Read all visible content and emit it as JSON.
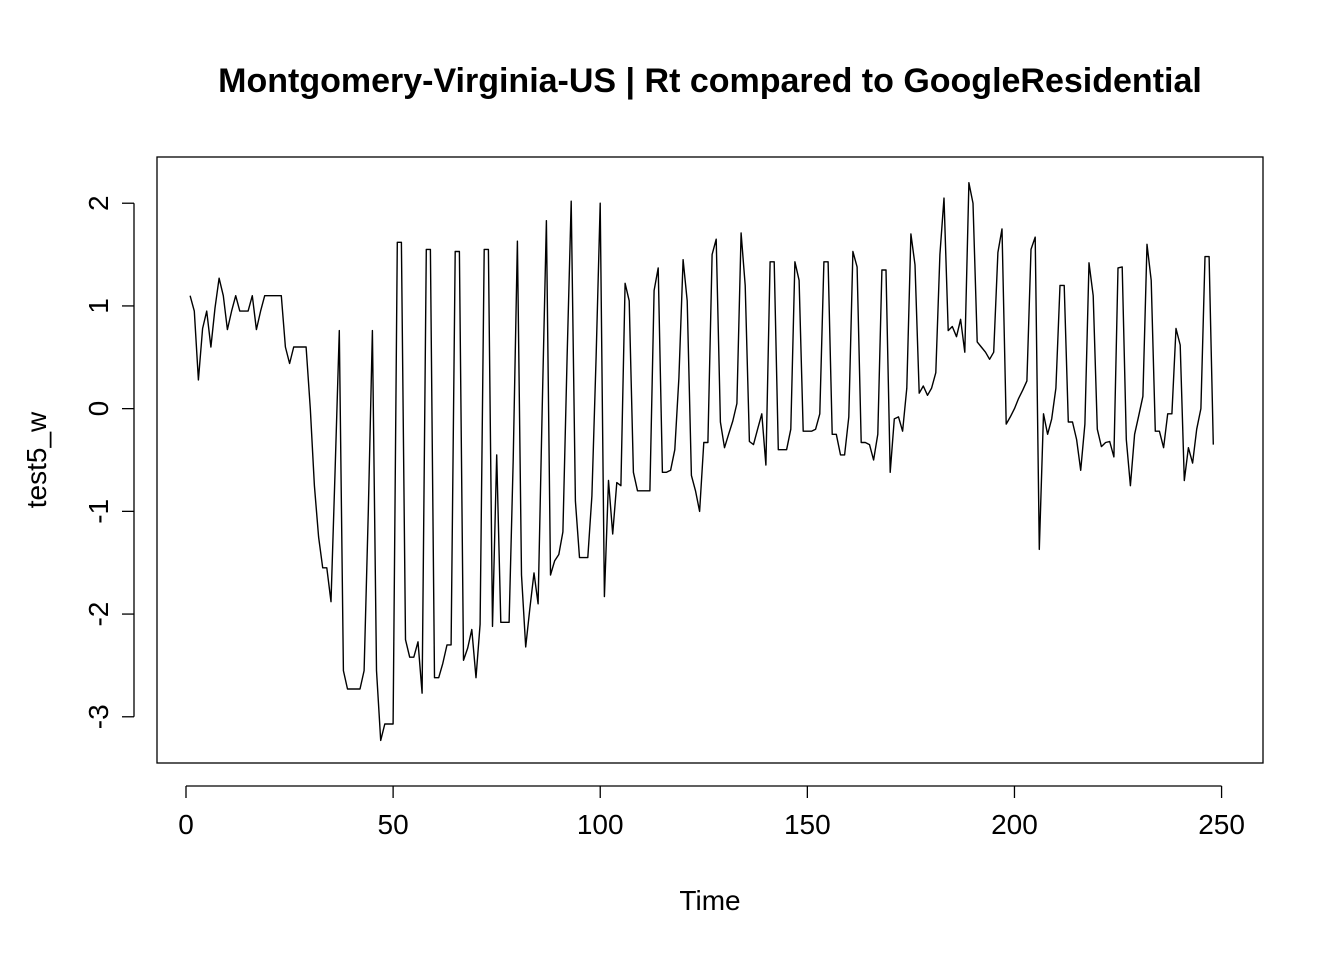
{
  "chart_data": {
    "type": "line",
    "title": "Montgomery-Virginia-US | Rt compared to GoogleResidential",
    "xlabel": "Time",
    "ylabel": "test5_w",
    "xlim": [
      -7,
      260
    ],
    "ylim": [
      -3.45,
      2.45
    ],
    "xticks": [
      0,
      50,
      100,
      150,
      200,
      250
    ],
    "yticks": [
      -3,
      -2,
      -1,
      0,
      1,
      2
    ],
    "grid": false,
    "legend": "none",
    "series": [
      {
        "x": [
          1,
          2,
          3,
          4,
          5,
          6,
          7,
          8,
          9,
          10,
          11,
          12,
          13,
          14,
          15,
          16,
          17,
          18,
          19,
          20,
          21,
          22,
          23,
          24,
          25,
          26,
          27,
          28,
          29,
          30,
          31,
          32,
          33,
          34,
          35,
          36,
          37,
          38,
          39,
          40,
          41,
          42,
          43,
          44,
          45,
          46,
          47,
          48,
          49,
          50,
          51,
          52,
          53,
          54,
          55,
          56,
          57,
          58,
          59,
          60,
          61,
          62,
          63,
          64,
          65,
          66,
          67,
          68,
          69,
          70,
          71,
          72,
          73,
          74,
          75,
          76,
          77,
          78,
          79,
          80,
          81,
          82,
          83,
          84,
          85,
          86,
          87,
          88,
          89,
          90,
          91,
          92,
          93,
          94,
          95,
          96,
          97,
          98,
          99,
          100,
          101,
          102,
          103,
          104,
          105,
          106,
          107,
          108,
          109,
          110,
          111,
          112,
          113,
          114,
          115,
          116,
          117,
          118,
          119,
          120,
          121,
          122,
          123,
          124,
          125,
          126,
          127,
          128,
          129,
          130,
          131,
          132,
          133,
          134,
          135,
          136,
          137,
          138,
          139,
          140,
          141,
          142,
          143,
          144,
          145,
          146,
          147,
          148,
          149,
          150,
          151,
          152,
          153,
          154,
          155,
          156,
          157,
          158,
          159,
          160,
          161,
          162,
          163,
          164,
          165,
          166,
          167,
          168,
          169,
          170,
          171,
          172,
          173,
          174,
          175,
          176,
          177,
          178,
          179,
          180,
          181,
          182,
          183,
          184,
          185,
          186,
          187,
          188,
          189,
          190,
          191,
          192,
          193,
          194,
          195,
          196,
          197,
          198,
          199,
          200,
          201,
          202,
          203,
          204,
          205,
          206,
          207,
          208,
          209,
          210,
          211,
          212,
          213,
          214,
          215,
          216,
          217,
          218,
          219,
          220,
          221,
          222,
          223,
          224,
          225,
          226,
          227,
          228,
          229,
          230,
          231,
          232,
          233,
          234,
          235,
          236,
          237,
          238,
          239,
          240,
          241,
          242,
          243,
          244,
          245,
          246,
          247,
          248
        ],
        "y": [
          1.1,
          0.95,
          0.28,
          0.78,
          0.95,
          0.6,
          0.98,
          1.27,
          1.1,
          0.77,
          0.95,
          1.1,
          0.95,
          0.95,
          0.95,
          1.1,
          0.77,
          0.95,
          1.1,
          1.1,
          1.1,
          1.1,
          1.1,
          0.6,
          0.44,
          0.6,
          0.6,
          0.6,
          0.6,
          0.0,
          -0.75,
          -1.25,
          -1.55,
          -1.55,
          -1.88,
          -0.6,
          0.76,
          -2.55,
          -2.73,
          -2.73,
          -2.73,
          -2.73,
          -2.55,
          -1.0,
          0.76,
          -2.55,
          -3.23,
          -3.07,
          -3.07,
          -3.07,
          1.62,
          1.62,
          -2.25,
          -2.42,
          -2.42,
          -2.27,
          -2.77,
          1.55,
          1.55,
          -2.62,
          -2.62,
          -2.48,
          -2.3,
          -2.3,
          1.53,
          1.53,
          -2.45,
          -2.33,
          -2.15,
          -2.62,
          -2.1,
          1.55,
          1.55,
          -2.12,
          -0.45,
          -2.08,
          -2.08,
          -2.08,
          -0.5,
          1.63,
          -1.62,
          -2.32,
          -1.95,
          -1.6,
          -1.9,
          0.0,
          1.83,
          -1.62,
          -1.48,
          -1.42,
          -1.2,
          0.5,
          2.02,
          -0.9,
          -1.45,
          -1.45,
          -1.45,
          -0.85,
          0.5,
          2.0,
          -1.83,
          -0.7,
          -1.22,
          -0.72,
          -0.75,
          1.22,
          1.05,
          -0.62,
          -0.8,
          -0.8,
          -0.8,
          -0.8,
          1.15,
          1.37,
          -0.62,
          -0.62,
          -0.6,
          -0.4,
          0.3,
          1.45,
          1.05,
          -0.65,
          -0.8,
          -1.0,
          -0.33,
          -0.33,
          1.5,
          1.65,
          -0.13,
          -0.38,
          -0.25,
          -0.12,
          0.05,
          1.71,
          1.2,
          -0.32,
          -0.35,
          -0.2,
          -0.05,
          -0.55,
          1.43,
          1.43,
          -0.4,
          -0.4,
          -0.4,
          -0.2,
          1.43,
          1.25,
          -0.22,
          -0.22,
          -0.22,
          -0.2,
          -0.05,
          1.43,
          1.43,
          -0.25,
          -0.25,
          -0.45,
          -0.45,
          -0.08,
          1.53,
          1.38,
          -0.33,
          -0.33,
          -0.35,
          -0.5,
          -0.25,
          1.35,
          1.35,
          -0.62,
          -0.1,
          -0.08,
          -0.22,
          0.2,
          1.7,
          1.4,
          0.15,
          0.22,
          0.13,
          0.2,
          0.35,
          1.5,
          2.05,
          0.76,
          0.8,
          0.7,
          0.87,
          0.55,
          2.2,
          2.0,
          0.65,
          0.6,
          0.55,
          0.48,
          0.55,
          1.52,
          1.75,
          -0.15,
          -0.08,
          0.0,
          0.1,
          0.18,
          0.27,
          1.55,
          1.67,
          -1.37,
          -0.05,
          -0.25,
          -0.1,
          0.2,
          1.2,
          1.2,
          -0.13,
          -0.13,
          -0.3,
          -0.6,
          -0.15,
          1.42,
          1.1,
          -0.2,
          -0.37,
          -0.33,
          -0.32,
          -0.47,
          1.37,
          1.38,
          -0.3,
          -0.75,
          -0.25,
          -0.07,
          0.12,
          1.6,
          1.25,
          -0.22,
          -0.22,
          -0.38,
          -0.05,
          -0.05,
          0.78,
          0.62,
          -0.7,
          -0.38,
          -0.53,
          -0.2,
          0.0,
          1.48,
          1.48,
          -0.35
        ]
      }
    ]
  }
}
